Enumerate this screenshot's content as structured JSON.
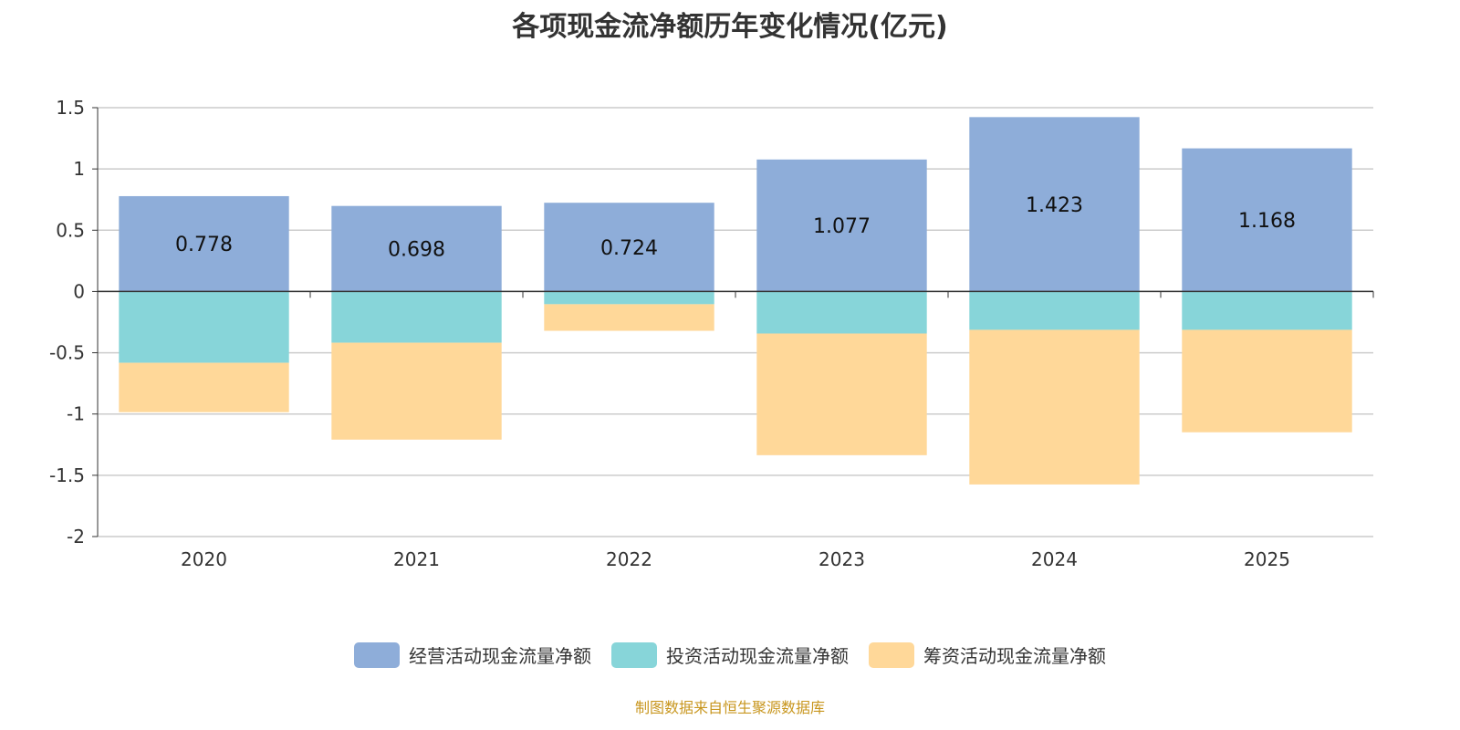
{
  "chart_data": {
    "type": "bar",
    "stacked": true,
    "title": "各项现金流净额历年变化情况(亿元)",
    "categories": [
      "2020",
      "2021",
      "2022",
      "2023",
      "2024",
      "2025"
    ],
    "series": [
      {
        "name": "经营活动现金流量净额",
        "color": "#8eadd9",
        "values": [
          0.778,
          0.698,
          0.724,
          1.077,
          1.423,
          1.168
        ],
        "labels": [
          "0.778",
          "0.698",
          "0.724",
          "1.077",
          "1.423",
          "1.168"
        ]
      },
      {
        "name": "投资活动现金流量净额",
        "color": "#87d5d9",
        "values": [
          -0.582,
          -0.418,
          -0.104,
          -0.343,
          -0.313,
          -0.313
        ]
      },
      {
        "name": "筹资活动现金流量净额",
        "color": "#ffd899",
        "values": [
          -0.403,
          -0.791,
          -0.217,
          -0.993,
          -1.262,
          -0.836
        ]
      }
    ],
    "yticks": [
      "1.5",
      "1",
      "0.5",
      "0",
      "-0.5",
      "-1",
      "-1.5",
      "-2"
    ],
    "ytick_values": [
      1.5,
      1,
      0.5,
      0,
      -0.5,
      -1,
      -1.5,
      -2
    ],
    "ylim": [
      -2,
      1.5
    ],
    "grid": true,
    "legend": "bottom",
    "xlabel": "",
    "ylabel": ""
  },
  "source": "制图数据来自恒生聚源数据库"
}
